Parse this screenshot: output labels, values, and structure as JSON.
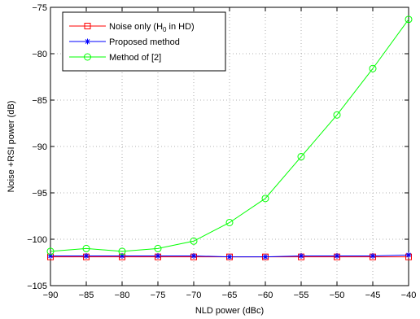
{
  "chart_data": {
    "type": "line",
    "xlabel": "NLD power (dBc)",
    "ylabel": "Noise +RSI power (dB)",
    "xlim": [
      -90,
      -40
    ],
    "ylim": [
      -105,
      -75
    ],
    "grid": true,
    "legend_position": "top-left",
    "x": [
      -90,
      -85,
      -80,
      -75,
      -70,
      -65,
      -60,
      -55,
      -50,
      -45,
      -40
    ],
    "x_ticks": [
      "−90",
      "−85",
      "−80",
      "−75",
      "−70",
      "−65",
      "−60",
      "−55",
      "−50",
      "−45",
      "−40"
    ],
    "y_ticks": [
      "−105",
      "−100",
      "−95",
      "−90",
      "−85",
      "−80",
      "−75"
    ],
    "series": [
      {
        "name_prefix": "Noise only (H",
        "name_sub": "0",
        "name_suffix": " in HD)",
        "color": "#ff0000",
        "marker": "square",
        "values": [
          -101.9,
          -101.9,
          -101.9,
          -101.9,
          -101.9,
          -101.9,
          -101.9,
          -101.9,
          -101.9,
          -101.9,
          -101.9
        ]
      },
      {
        "name": "Proposed method",
        "color": "#0000ff",
        "marker": "star",
        "values": [
          -101.8,
          -101.8,
          -101.8,
          -101.8,
          -101.8,
          -101.9,
          -101.9,
          -101.8,
          -101.8,
          -101.8,
          -101.7
        ]
      },
      {
        "name": "Method of [2]",
        "color": "#00ff00",
        "marker": "circle",
        "values": [
          -101.3,
          -101.0,
          -101.3,
          -101.0,
          -100.2,
          -98.2,
          -95.6,
          -91.1,
          -86.6,
          -81.6,
          -76.3
        ]
      }
    ]
  }
}
